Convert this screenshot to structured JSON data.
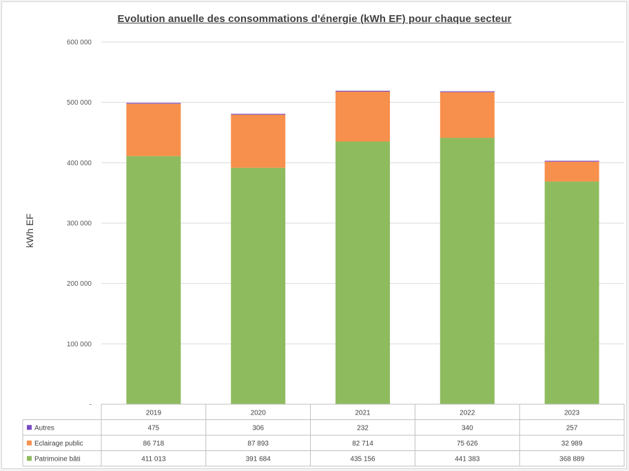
{
  "chart_data": {
    "type": "bar",
    "stacked": true,
    "title": "Evolution anuelle des consommations  d'énergie (kWh EF) pour chaque secteur",
    "ylabel": "kWh EF",
    "xlabel": "",
    "ylim": [
      0,
      600000
    ],
    "yticks": [
      0,
      100000,
      200000,
      300000,
      400000,
      500000,
      600000
    ],
    "ytick_labels": [
      "-",
      "100 000",
      "200 000",
      "300 000",
      "400 000",
      "500 000",
      "600 000"
    ],
    "grid": true,
    "legend_placement": "data-table",
    "categories": [
      "2019",
      "2020",
      "2021",
      "2022",
      "2023"
    ],
    "series": [
      {
        "name": "Patrimoine bâti",
        "color": "#8fbb5f",
        "values": [
          411013,
          391684,
          435156,
          441383,
          368889
        ],
        "labels": [
          "411 013",
          "391 684",
          "435 156",
          "441 383",
          "368 889"
        ]
      },
      {
        "name": "Eclairage public",
        "color": "#f7904c",
        "values": [
          86718,
          87893,
          82714,
          75626,
          32989
        ],
        "labels": [
          "86 718",
          "87 893",
          "82 714",
          "75 626",
          "32 989"
        ]
      },
      {
        "name": "Autres",
        "color": "#7a4ac4",
        "values": [
          475,
          306,
          232,
          340,
          257
        ],
        "labels": [
          "475",
          "306",
          "232",
          "340",
          "257"
        ]
      }
    ],
    "table_row_order": [
      2,
      1,
      0
    ]
  }
}
